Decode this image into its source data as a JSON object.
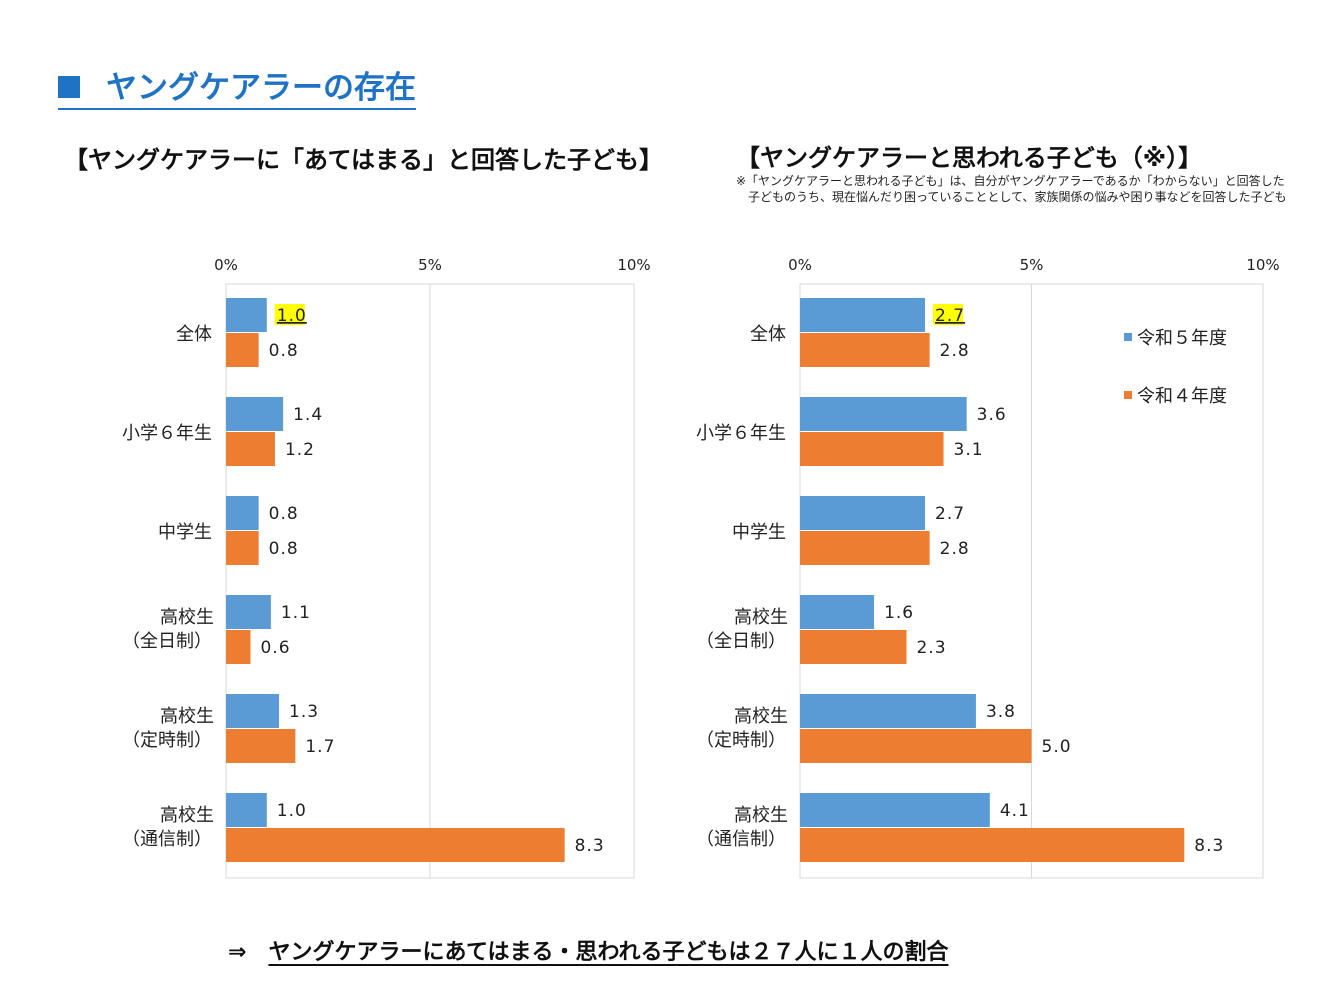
{
  "heading": "ヤングケアラーの存在",
  "left_chart_title": "【ヤングケアラーに「あてはまる」と回答した子ども】",
  "right_chart_title": "【ヤングケアラーと思われる子ども（※）】",
  "footnote": [
    "※「ヤングケアラーと思われる子ども」は、自分がヤングケアラーであるか「わからない」と回答した",
    "子どものうち、現在悩んだり困っていることとして、家族関係の悩みや困り事などを回答した子ども"
  ],
  "conclusion": {
    "arrow": "⇒",
    "text": "ヤングケアラーにあてはまる・思われる子どもは２７人に１人の割合"
  },
  "colors": {
    "series1": "#5b9bd5",
    "series2": "#ed7d31",
    "highlight": "#ffff00",
    "heading": "#1f73c4",
    "grid": "#d9d9d9"
  },
  "chart_data": [
    {
      "type": "bar",
      "orientation": "horizontal",
      "title": "【ヤングケアラーに「あてはまる」と回答した子ども】",
      "categories": [
        [
          "全体"
        ],
        [
          "小学６年生"
        ],
        [
          "中学生"
        ],
        [
          "高校生",
          "（全日制）"
        ],
        [
          "高校生",
          "（定時制）"
        ],
        [
          "高校生",
          "（通信制）"
        ]
      ],
      "series": [
        {
          "name": "令和５年度",
          "values": [
            1.0,
            1.4,
            0.8,
            1.1,
            1.3,
            1.0
          ],
          "labels": [
            "1.0",
            "1.4",
            "0.8",
            "1.1",
            "1.3",
            "1.0"
          ]
        },
        {
          "name": "令和４年度",
          "values": [
            0.8,
            1.2,
            0.8,
            0.6,
            1.7,
            8.3
          ],
          "labels": [
            "0.8",
            "1.2",
            "0.8",
            "0.6",
            "1.7",
            "8.3"
          ]
        }
      ],
      "highlighted": [
        {
          "series": 0,
          "index": 0
        }
      ],
      "xlim": [
        0,
        10
      ],
      "xticks": [
        "0%",
        "5%",
        "10%"
      ],
      "axis_position": "top",
      "grid": true,
      "legend": false
    },
    {
      "type": "bar",
      "orientation": "horizontal",
      "title": "【ヤングケアラーと思われる子ども（※）】",
      "categories": [
        [
          "全体"
        ],
        [
          "小学６年生"
        ],
        [
          "中学生"
        ],
        [
          "高校生",
          "（全日制）"
        ],
        [
          "高校生",
          "（定時制）"
        ],
        [
          "高校生",
          "（通信制）"
        ]
      ],
      "series": [
        {
          "name": "令和５年度",
          "values": [
            2.7,
            3.6,
            2.7,
            1.6,
            3.8,
            4.1
          ],
          "labels": [
            "2.7",
            "3.6",
            "2.7",
            "1.6",
            "3.8",
            "4.1"
          ]
        },
        {
          "name": "令和４年度",
          "values": [
            2.8,
            3.1,
            2.8,
            2.3,
            5.0,
            8.3
          ],
          "labels": [
            "2.8",
            "3.1",
            "2.8",
            "2.3",
            "5.0",
            "8.3"
          ]
        }
      ],
      "highlighted": [
        {
          "series": 0,
          "index": 0
        }
      ],
      "xlim": [
        0,
        10
      ],
      "xticks": [
        "0%",
        "5%",
        "10%"
      ],
      "axis_position": "top",
      "grid": true,
      "legend": true,
      "legend_position": "top-right"
    }
  ]
}
